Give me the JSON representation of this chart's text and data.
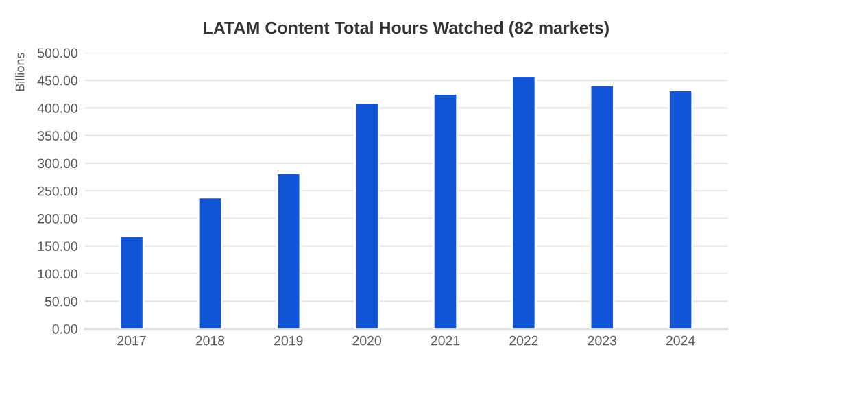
{
  "chart_data": {
    "type": "bar",
    "title": "LATAM Content Total Hours Watched (82 markets)",
    "ylabel": "Billions",
    "categories": [
      "2017",
      "2018",
      "2019",
      "2020",
      "2021",
      "2022",
      "2023",
      "2024"
    ],
    "values": [
      168,
      238,
      282,
      409,
      426,
      458,
      441,
      432
    ],
    "color": "#1155d6",
    "ylim": [
      0,
      500
    ],
    "yticks": [
      {
        "value": 0,
        "label": "0.00"
      },
      {
        "value": 50,
        "label": "50.00"
      },
      {
        "value": 100,
        "label": "100.00"
      },
      {
        "value": 150,
        "label": "150.00"
      },
      {
        "value": 200,
        "label": "200.00"
      },
      {
        "value": 250,
        "label": "250.00"
      },
      {
        "value": 300,
        "label": "300.00"
      },
      {
        "value": 350,
        "label": "350.00"
      },
      {
        "value": 400,
        "label": "400.00"
      },
      {
        "value": 450,
        "label": "450.00"
      },
      {
        "value": 500,
        "label": "500.00"
      }
    ],
    "grid": "y"
  }
}
